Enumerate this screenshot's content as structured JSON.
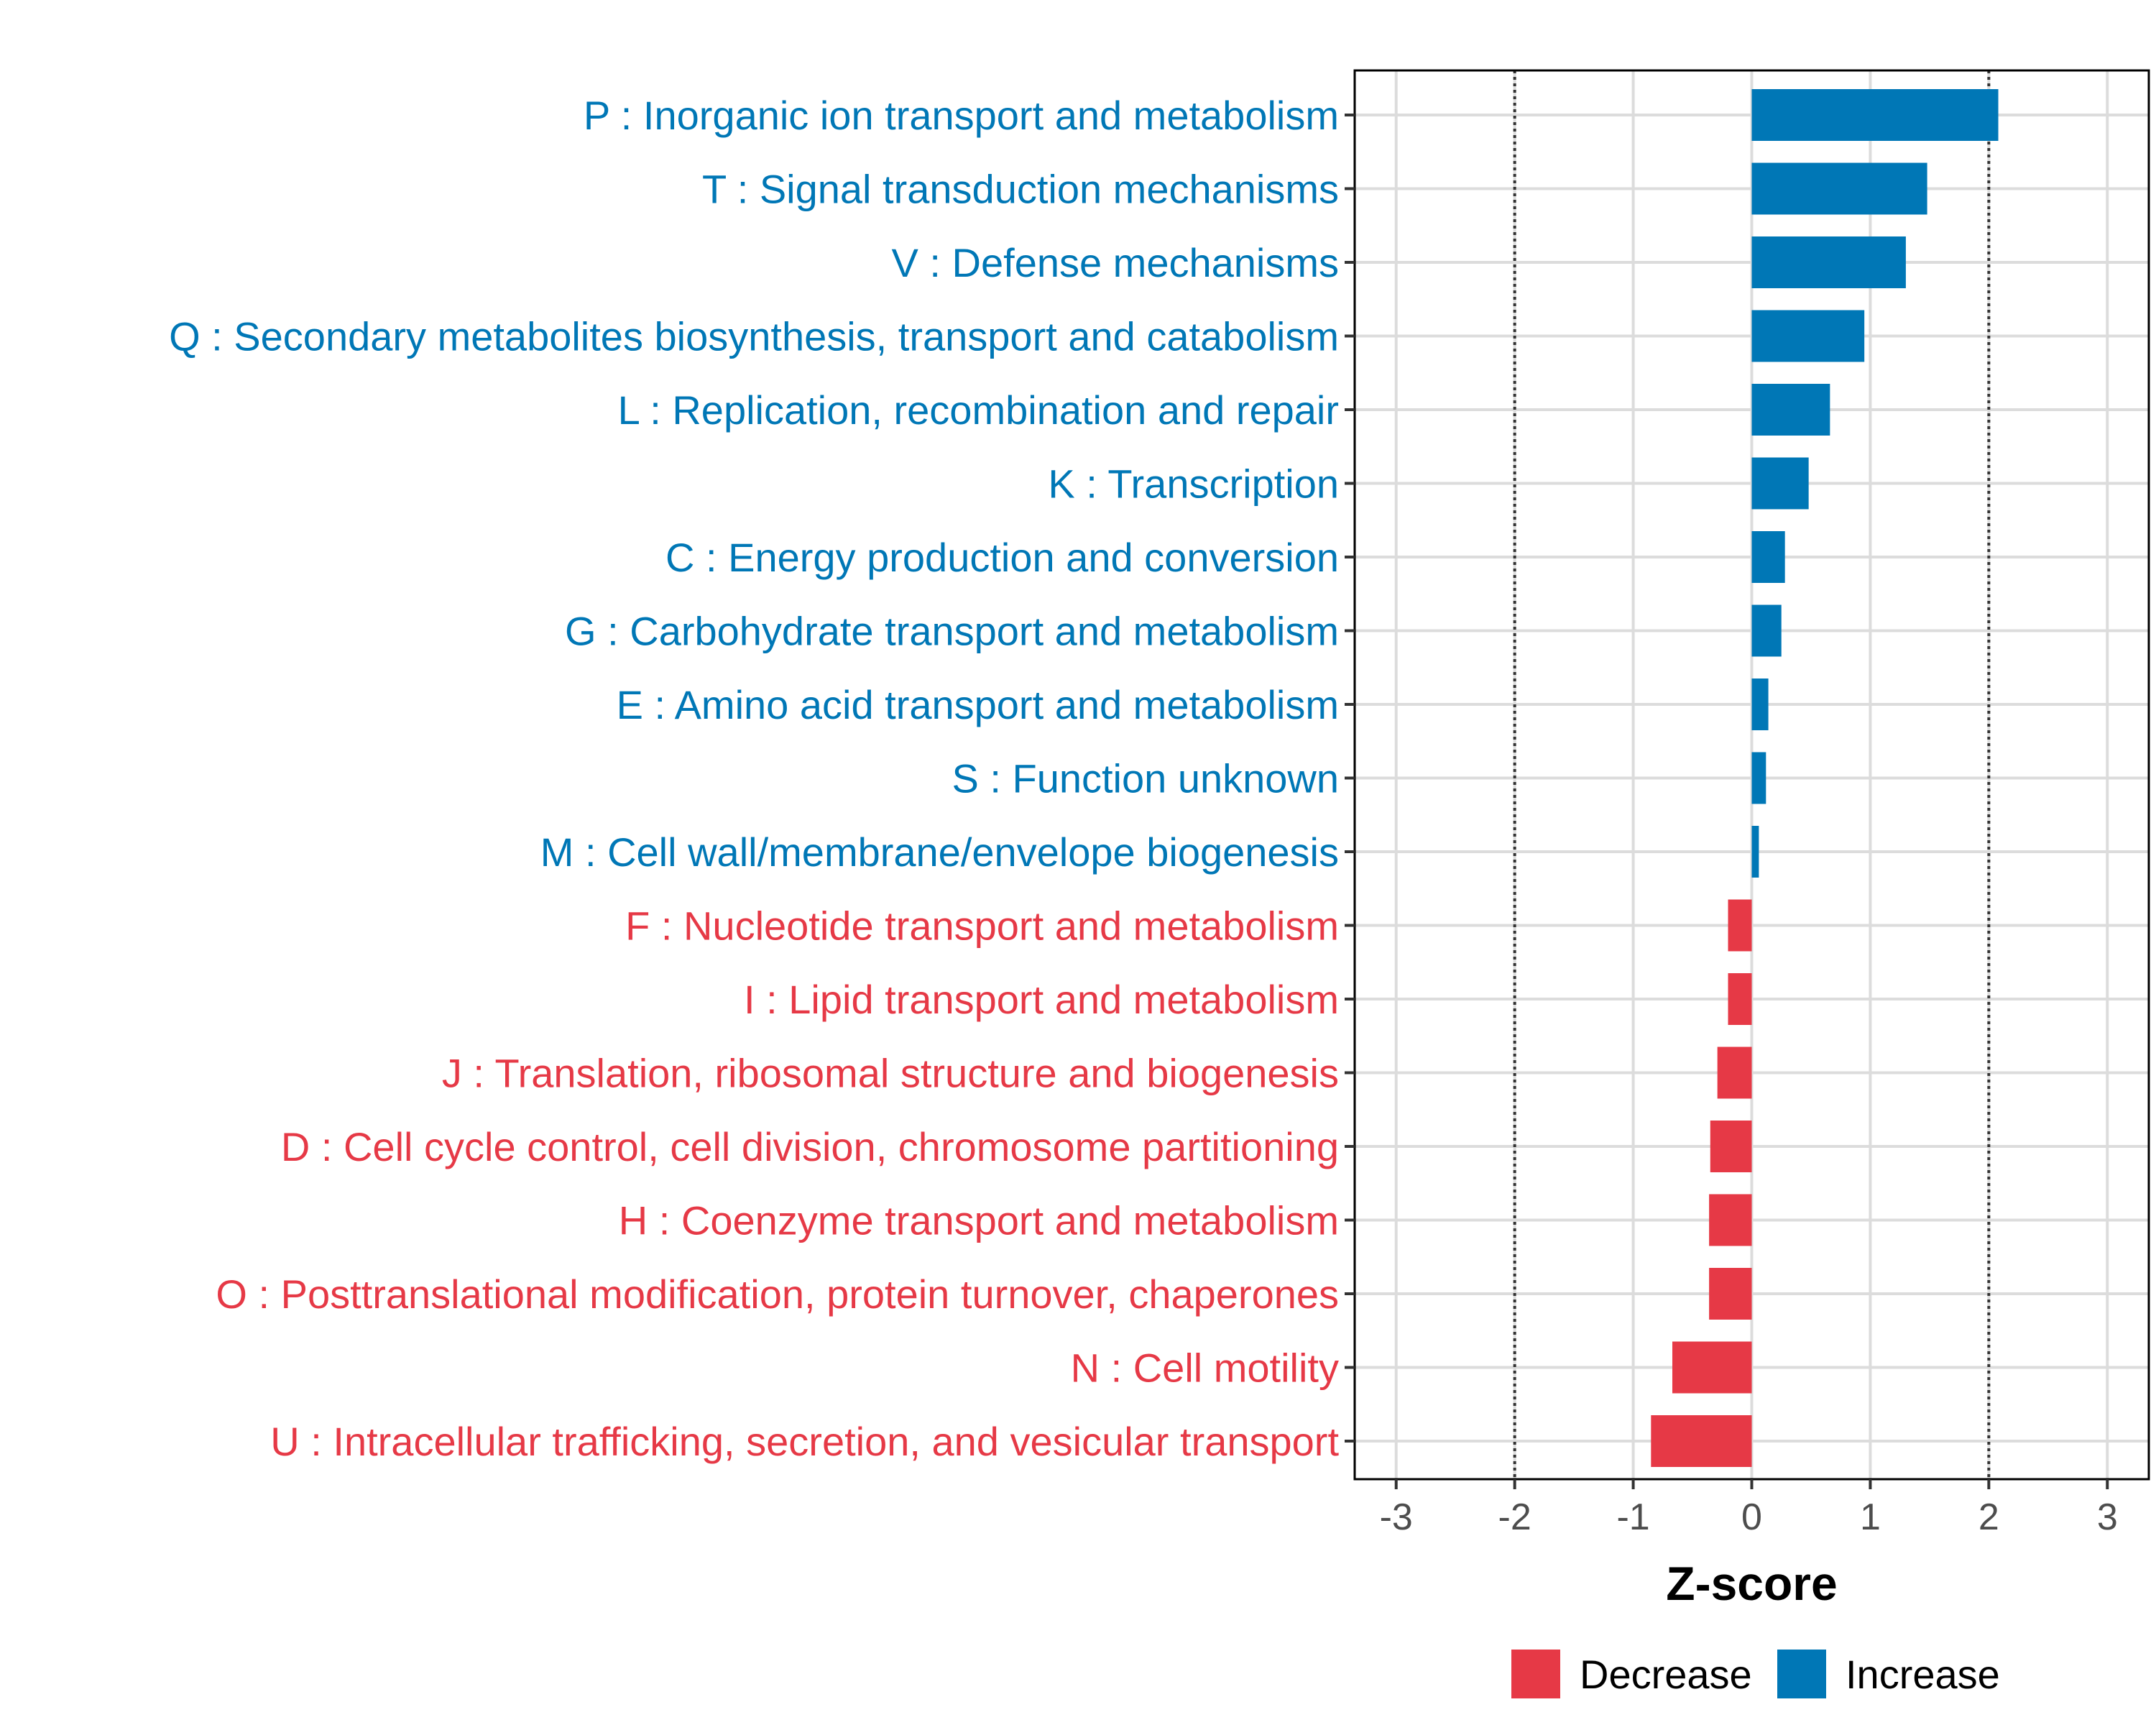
{
  "chart_data": {
    "type": "bar",
    "orientation": "horizontal",
    "title": "",
    "xlabel": "Z-score",
    "ylabel": "",
    "xlim": [
      -3.35,
      3.35
    ],
    "xticks": [
      -3,
      -2,
      -1,
      0,
      1,
      2,
      3
    ],
    "xtick_labels": [
      "-3",
      "-2",
      "-1",
      "0",
      "1",
      "2",
      "3"
    ],
    "reference_lines": [
      -2,
      2
    ],
    "grid": true,
    "categories": [
      "P : Inorganic ion transport and metabolism",
      "T : Signal transduction mechanisms",
      "V : Defense mechanisms",
      "Q : Secondary metabolites biosynthesis, transport and catabolism",
      "L : Replication, recombination and repair",
      "K : Transcription",
      "C : Energy production and conversion",
      "G : Carbohydrate transport and metabolism",
      "E : Amino acid transport and metabolism",
      "S : Function unknown",
      "M : Cell wall/membrane/envelope biogenesis",
      "F : Nucleotide transport and metabolism",
      "I : Lipid transport and metabolism",
      "J : Translation, ribosomal structure and biogenesis",
      "D : Cell cycle control, cell division, chromosome partitioning",
      "H : Coenzyme transport and metabolism",
      "O : Posttranslational modification, protein turnover, chaperones",
      "N : Cell motility",
      "U : Intracellular trafficking, secretion, and vesicular transport"
    ],
    "values": [
      2.08,
      1.48,
      1.3,
      0.95,
      0.66,
      0.48,
      0.28,
      0.25,
      0.14,
      0.12,
      0.06,
      -0.2,
      -0.2,
      -0.29,
      -0.35,
      -0.36,
      -0.36,
      -0.67,
      -0.85
    ],
    "groups": [
      "Increase",
      "Increase",
      "Increase",
      "Increase",
      "Increase",
      "Increase",
      "Increase",
      "Increase",
      "Increase",
      "Increase",
      "Increase",
      "Decrease",
      "Decrease",
      "Decrease",
      "Decrease",
      "Decrease",
      "Decrease",
      "Decrease",
      "Decrease"
    ],
    "legend": {
      "position": "bottom",
      "items": [
        {
          "label": "Decrease",
          "color": "#e63946"
        },
        {
          "label": "Increase",
          "color": "#0077b6"
        }
      ]
    }
  }
}
